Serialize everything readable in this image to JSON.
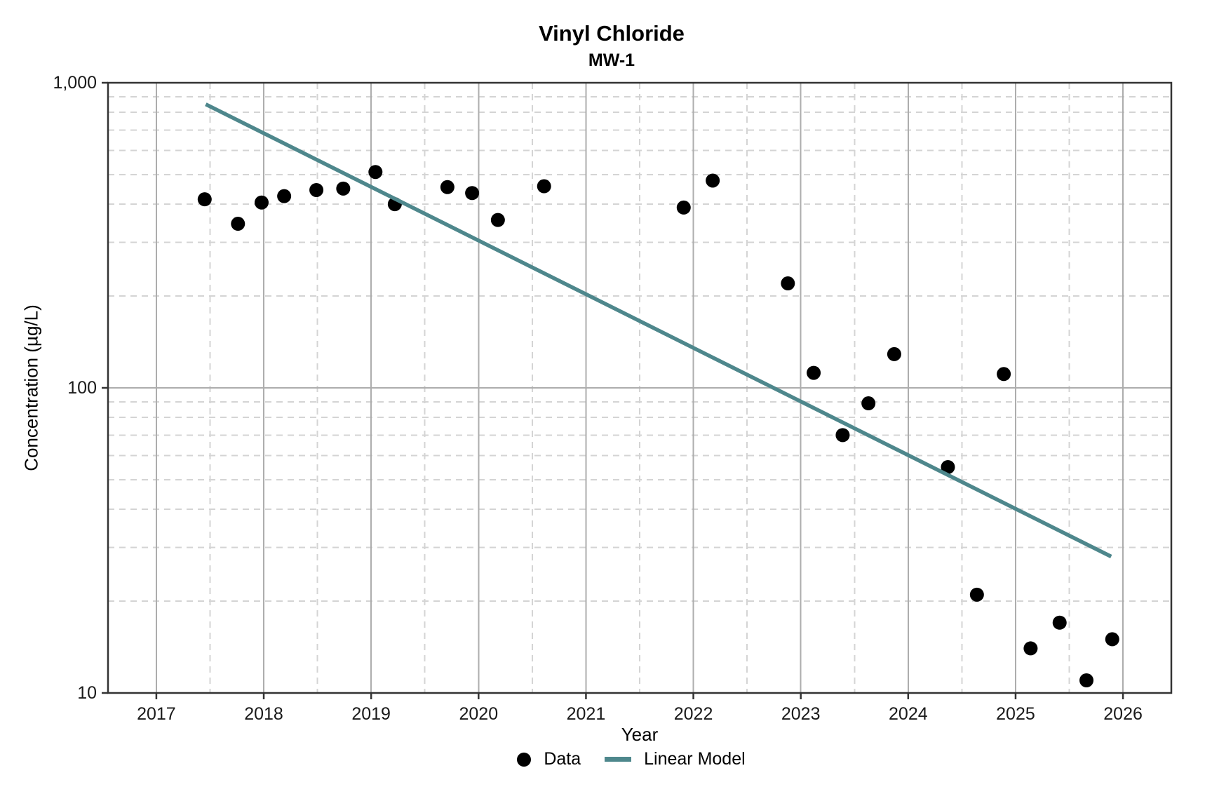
{
  "chart_data": {
    "type": "scatter",
    "title": "Vinyl Chloride",
    "subtitle": "MW-1",
    "xlabel": "Year",
    "ylabel": "Concentration (µg/L)",
    "y_scale": "log10",
    "xlim": [
      2016.55,
      2026.45
    ],
    "ylim": [
      10,
      1000
    ],
    "x_ticks": [
      2017,
      2018,
      2019,
      2020,
      2021,
      2022,
      2023,
      2024,
      2025,
      2026
    ],
    "y_ticks": [
      {
        "value": 10,
        "label": "10"
      },
      {
        "value": 100,
        "label": "100"
      },
      {
        "value": 1000,
        "label": "1,000"
      }
    ],
    "grid": {
      "major": "solid",
      "minor": "dashed",
      "x_minor_step": 0.5
    },
    "legend_position": "bottom",
    "series": [
      {
        "name": "Data",
        "kind": "scatter",
        "marker": "circle",
        "color": "#000000",
        "points": [
          [
            2017.45,
            415
          ],
          [
            2017.76,
            345
          ],
          [
            2017.98,
            405
          ],
          [
            2018.19,
            425
          ],
          [
            2018.49,
            445
          ],
          [
            2018.74,
            450
          ],
          [
            2019.04,
            510
          ],
          [
            2019.22,
            400
          ],
          [
            2019.71,
            455
          ],
          [
            2019.94,
            435
          ],
          [
            2020.18,
            355
          ],
          [
            2020.61,
            458
          ],
          [
            2021.91,
            390
          ],
          [
            2022.18,
            478
          ],
          [
            2022.88,
            220
          ],
          [
            2023.12,
            112
          ],
          [
            2023.39,
            70
          ],
          [
            2023.63,
            89
          ],
          [
            2023.87,
            129
          ],
          [
            2024.37,
            55
          ],
          [
            2024.64,
            21
          ],
          [
            2024.89,
            111
          ],
          [
            2025.14,
            14
          ],
          [
            2025.41,
            17
          ],
          [
            2025.66,
            11
          ],
          [
            2025.9,
            15
          ]
        ]
      },
      {
        "name": "Linear Model",
        "kind": "line",
        "color": "#4e878c",
        "points": [
          [
            2017.46,
            850
          ],
          [
            2025.89,
            28
          ]
        ]
      }
    ]
  }
}
